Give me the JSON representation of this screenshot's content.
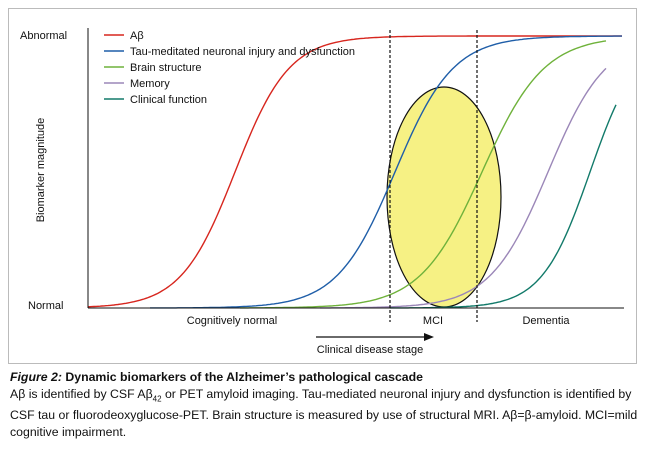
{
  "figure": {
    "y_axis_label": "Biomarker magnitude",
    "y_labels": [
      "Abnormal",
      "Normal"
    ],
    "x_labels": [
      "Cognitively normal",
      "MCI",
      "Dementia"
    ],
    "arrow_label": "Clinical disease stage",
    "legend": [
      "Aβ",
      "Tau-meditated neuronal injury and dysfunction",
      "Brain structure",
      "Memory",
      "Clinical function"
    ]
  },
  "caption": {
    "label": "Figure 2:",
    "title": "Dynamic biomarkers of the Alzheimer’s pathological cascade",
    "text_parts": [
      "Aβ is identified by CSF Aβ",
      "42",
      " or PET amyloid imaging. Tau-mediated neuronal injury and dysfunction is identified by CSF tau or fluorodeoxyglucose-PET. Brain structure is measured by use of structural MRI. Aβ=β-amyloid. MCI=mild cognitive impairment."
    ]
  }
}
